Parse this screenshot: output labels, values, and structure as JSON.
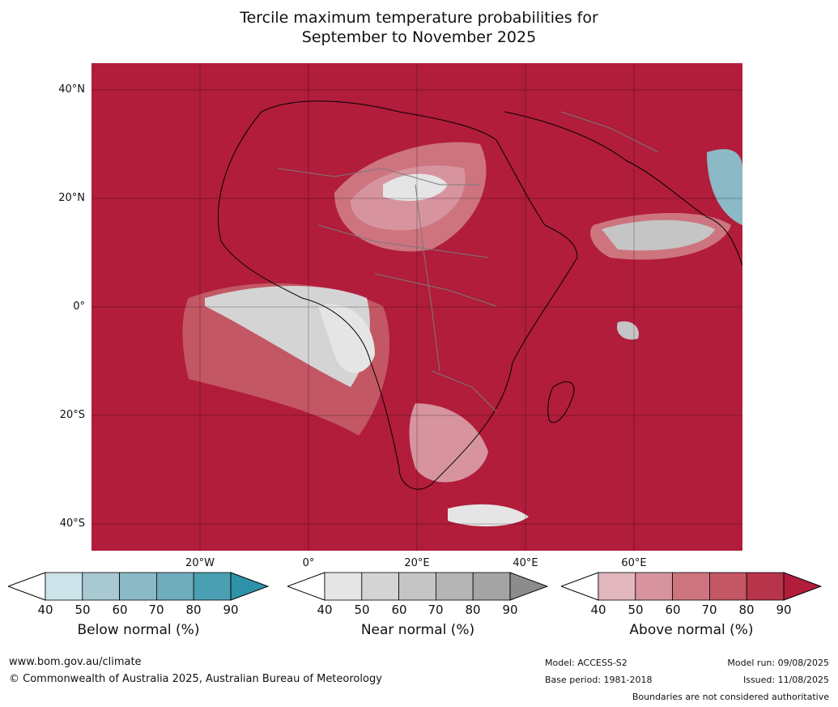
{
  "title_line1": "Tercile maximum temperature probabilities for",
  "title_line2": "September to November 2025",
  "lat_labels": [
    "40°N",
    "20°N",
    "0°",
    "20°S",
    "40°S"
  ],
  "lon_labels": [
    "20°W",
    "0°",
    "20°E",
    "40°E",
    "60°E"
  ],
  "legends": {
    "below": {
      "label": "Below normal (%)",
      "ticks": [
        "40",
        "50",
        "60",
        "70",
        "80",
        "90"
      ],
      "colors": [
        "#cce3ea",
        "#a8c9d1",
        "#8bb9c5",
        "#6fadbd",
        "#4aa0b2",
        "#2e93a8"
      ]
    },
    "near": {
      "label": "Near normal (%)",
      "ticks": [
        "40",
        "50",
        "60",
        "70",
        "80",
        "90"
      ],
      "colors": [
        "#e5e5e5",
        "#d4d4d4",
        "#c5c5c5",
        "#b5b5b5",
        "#a4a4a4",
        "#8c8c8c"
      ]
    },
    "above": {
      "label": "Above normal (%)",
      "ticks": [
        "40",
        "50",
        "60",
        "70",
        "80",
        "90"
      ],
      "colors": [
        "#e2b7be",
        "#d7949f",
        "#cd747f",
        "#c35764",
        "#b8344b",
        "#b11d3b"
      ]
    }
  },
  "footer": {
    "url": "www.bom.gov.au/climate",
    "copyright": "© Commonwealth of Australia 2025, Australian Bureau of Meteorology",
    "model": "Model: ACCESS-S2",
    "base_period": "Base period: 1981-2018",
    "model_run": "Model run: 09/08/2025",
    "issued": "Issued: 11/08/2025",
    "disclaimer": "Boundaries are not considered authoritative"
  }
}
